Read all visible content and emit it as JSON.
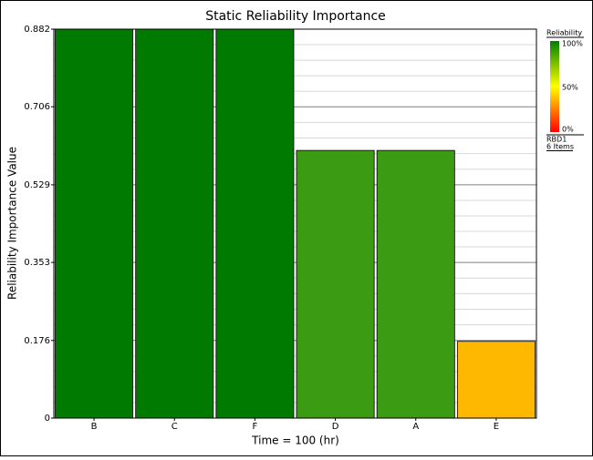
{
  "chart_data": {
    "type": "bar",
    "title": "Static Reliability Importance",
    "x_label": "Time = 100 (hr)",
    "y_label": "Reliability Importance Value",
    "categories": [
      "B",
      "C",
      "F",
      "D",
      "A",
      "E"
    ],
    "values": [
      0.882,
      0.882,
      0.882,
      0.607,
      0.607,
      0.174
    ],
    "colors": [
      "#007a00",
      "#007a00",
      "#007a00",
      "#3b9b12",
      "#3b9b12",
      "#ffb800"
    ],
    "ylim": [
      0,
      0.882
    ],
    "yticks": [
      0,
      0.176,
      0.353,
      0.529,
      0.706,
      0.882
    ],
    "grid": true,
    "minor_divisions": 5,
    "legend": {
      "title": "Reliability",
      "scale_labels": [
        "100%",
        "50%",
        "0%"
      ],
      "group": "RBD1",
      "count": "6 Items"
    }
  }
}
